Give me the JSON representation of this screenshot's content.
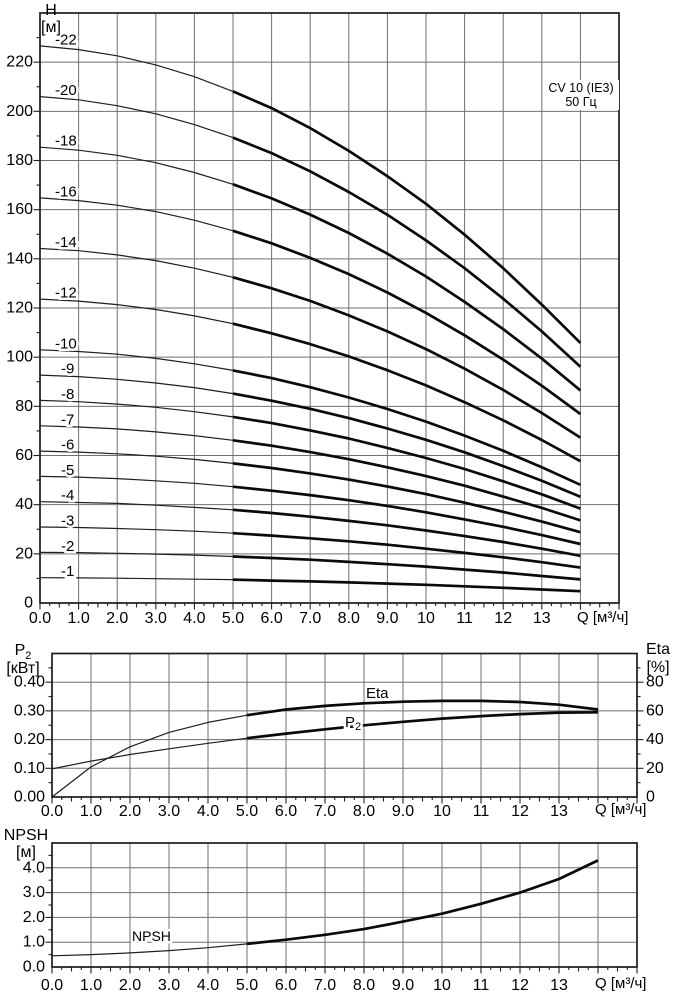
{
  "annotation": {
    "line1": "CV 10 (IE3)",
    "line2": "50 Гц"
  },
  "axes": {
    "head": {
      "title": "H",
      "unit": "[м]",
      "x_title": "Q [м³/ч]"
    },
    "power": {
      "title": "P",
      "title_sub": "2",
      "unit": "[кВт]",
      "x_title": "Q [м³/ч]"
    },
    "eta": {
      "title": "Eta",
      "unit": "[%]"
    },
    "npsh": {
      "title": "NPSH",
      "unit": "[м]",
      "x_title": "Q [м³/ч]"
    }
  },
  "colors": {
    "curve": "#0a0a0a",
    "curve_thin": "#1f1f1f",
    "grid": "#6f6f6f",
    "border": "#1a1a1a",
    "text": "#000000",
    "background": "#ffffff"
  },
  "chart_data": [
    {
      "type": "line",
      "name": "head-curves",
      "title": "CV 10 (IE3) 50 Гц",
      "xlabel": "Q [м³/ч]",
      "ylabel": "H [м]",
      "xlim": [
        0,
        15
      ],
      "ylim": [
        0,
        240
      ],
      "grid": true,
      "curves_end_q": 14,
      "bold_range_q": [
        5,
        14
      ],
      "x": [
        0,
        1,
        2,
        3,
        4,
        5,
        6,
        7,
        8,
        9,
        10,
        11,
        12,
        13,
        14
      ],
      "x_tick_labels": [
        "0.0",
        "1.0",
        "2.0",
        "3.0",
        "4.0",
        "5.0",
        "6.0",
        "7.0",
        "8.0",
        "9.0",
        "10",
        "11",
        "12",
        "13"
      ],
      "y_tick_labels": [
        "0",
        "20",
        "40",
        "60",
        "80",
        "100",
        "120",
        "140",
        "160",
        "180",
        "200",
        "220"
      ],
      "series": [
        {
          "name": "-22",
          "values": [
            226.6,
            225.1,
            222.6,
            218.9,
            214.1,
            208.1,
            201.3,
            193.2,
            183.9,
            173.6,
            162.4,
            149.8,
            136.2,
            121.4,
            105.8
          ]
        },
        {
          "name": "-20",
          "values": [
            206.0,
            204.7,
            202.3,
            199.0,
            194.6,
            189.3,
            183.0,
            175.6,
            167.2,
            157.9,
            147.5,
            136.2,
            123.8,
            110.5,
            96.1
          ]
        },
        {
          "name": "-18",
          "values": [
            185.4,
            184.2,
            182.1,
            179.1,
            175.1,
            170.3,
            164.6,
            158.0,
            150.5,
            142.1,
            132.8,
            122.5,
            111.4,
            99.4,
            86.5
          ]
        },
        {
          "name": "-16",
          "values": [
            164.8,
            163.7,
            161.8,
            159.2,
            155.7,
            151.4,
            146.3,
            140.4,
            133.8,
            126.3,
            118.0,
            108.9,
            99.0,
            88.4,
            76.9
          ]
        },
        {
          "name": "-14",
          "values": [
            144.2,
            143.3,
            141.6,
            139.3,
            136.2,
            132.5,
            128.0,
            122.9,
            117.0,
            110.5,
            103.3,
            95.3,
            86.7,
            77.3,
            67.3
          ]
        },
        {
          "name": "-12",
          "values": [
            123.6,
            122.8,
            121.4,
            119.4,
            116.8,
            113.6,
            109.7,
            105.3,
            100.3,
            94.7,
            88.5,
            81.7,
            74.3,
            66.3,
            57.7
          ]
        },
        {
          "name": "-10",
          "values": [
            103.0,
            102.3,
            101.2,
            99.5,
            97.3,
            94.6,
            91.5,
            87.8,
            83.6,
            78.9,
            73.8,
            68.1,
            61.9,
            55.2,
            48.1
          ]
        },
        {
          "name": "-9",
          "values": [
            92.7,
            92.1,
            91.0,
            89.5,
            87.6,
            85.2,
            82.3,
            79.0,
            75.2,
            71.0,
            66.4,
            61.3,
            55.7,
            49.7,
            43.2
          ]
        },
        {
          "name": "-8",
          "values": [
            82.4,
            81.9,
            80.9,
            79.6,
            77.8,
            75.7,
            73.2,
            70.2,
            66.9,
            63.1,
            59.0,
            54.5,
            49.5,
            44.2,
            38.4
          ]
        },
        {
          "name": "-7",
          "values": [
            72.1,
            71.6,
            70.8,
            69.6,
            68.1,
            66.2,
            64.0,
            61.4,
            58.5,
            55.2,
            51.6,
            47.7,
            43.3,
            38.7,
            33.6
          ]
        },
        {
          "name": "-6",
          "values": [
            61.8,
            61.4,
            60.7,
            59.7,
            58.4,
            56.8,
            54.9,
            52.7,
            50.2,
            47.4,
            44.3,
            40.8,
            37.1,
            33.1,
            28.8
          ]
        },
        {
          "name": "-5",
          "values": [
            51.5,
            51.2,
            50.6,
            49.7,
            48.7,
            47.3,
            45.7,
            43.9,
            41.8,
            39.5,
            36.9,
            34.0,
            31.0,
            27.6,
            24.0
          ]
        },
        {
          "name": "-4",
          "values": [
            41.2,
            40.9,
            40.5,
            39.8,
            38.9,
            37.9,
            36.6,
            35.1,
            33.4,
            31.6,
            29.5,
            27.2,
            24.8,
            22.1,
            19.2
          ]
        },
        {
          "name": "-3",
          "values": [
            30.9,
            30.7,
            30.3,
            29.8,
            29.2,
            28.4,
            27.4,
            26.3,
            25.1,
            23.7,
            22.1,
            20.4,
            18.6,
            16.6,
            14.4
          ]
        },
        {
          "name": "-2",
          "values": [
            20.6,
            20.5,
            20.2,
            19.9,
            19.5,
            18.9,
            18.3,
            17.6,
            16.7,
            15.8,
            14.8,
            13.6,
            12.4,
            11.0,
            9.6
          ]
        },
        {
          "name": "-1",
          "values": [
            10.3,
            10.2,
            10.1,
            9.9,
            9.7,
            9.5,
            9.1,
            8.8,
            8.4,
            7.9,
            7.4,
            6.8,
            6.2,
            5.5,
            4.8
          ]
        }
      ]
    },
    {
      "type": "line",
      "name": "power-and-efficiency",
      "xlabel": "Q [м³/ч]",
      "ylabel_left": "P₂ [кВт]",
      "ylabel_right": "Eta [%]",
      "xlim": [
        0,
        15
      ],
      "ylim_left": [
        0,
        0.5
      ],
      "ylim_right": [
        0,
        100
      ],
      "grid": true,
      "curves_end_q": 14,
      "bold_range_q": [
        5,
        14
      ],
      "x": [
        0,
        1,
        2,
        3,
        4,
        5,
        6,
        7,
        8,
        9,
        10,
        11,
        12,
        13,
        14
      ],
      "x_tick_labels": [
        "0.0",
        "1.0",
        "2.0",
        "3.0",
        "4.0",
        "5.0",
        "6.0",
        "7.0",
        "8.0",
        "9.0",
        "10",
        "11",
        "12",
        "13"
      ],
      "y_tick_labels_left": [
        "0.00",
        "0.10",
        "0.20",
        "0.30",
        "0.40"
      ],
      "y_tick_labels_right": [
        "0",
        "20",
        "40",
        "60",
        "80"
      ],
      "series": [
        {
          "name": "Eta",
          "axis": "right",
          "label": {
            "text": "Eta"
          },
          "values": [
            0,
            21,
            35,
            45,
            52,
            57,
            61,
            63.5,
            65.3,
            66.4,
            67,
            67,
            66.2,
            64.3,
            61
          ]
        },
        {
          "name": "P2",
          "axis": "left",
          "label": {
            "text": "P",
            "sub": "2"
          },
          "values": [
            0.098,
            0.125,
            0.148,
            0.168,
            0.187,
            0.205,
            0.221,
            0.236,
            0.25,
            0.262,
            0.273,
            0.282,
            0.289,
            0.294,
            0.295
          ]
        }
      ]
    },
    {
      "type": "line",
      "name": "npsh",
      "xlabel": "Q [м³/ч]",
      "ylabel": "NPSH [м]",
      "xlim": [
        0,
        15
      ],
      "ylim": [
        0,
        5
      ],
      "grid": true,
      "curves_end_q": 14,
      "bold_range_q": [
        5,
        14
      ],
      "x": [
        0,
        1,
        2,
        3,
        4,
        5,
        6,
        7,
        8,
        9,
        10,
        11,
        12,
        13,
        14
      ],
      "x_tick_labels": [
        "0.0",
        "1.0",
        "2.0",
        "3.0",
        "4.0",
        "5.0",
        "6.0",
        "7.0",
        "8.0",
        "9.0",
        "10",
        "11",
        "12",
        "13"
      ],
      "y_tick_labels": [
        "0.0",
        "1.0",
        "2.0",
        "3.0",
        "4.0"
      ],
      "series": [
        {
          "name": "NPSH",
          "label": {
            "text": "NPSH"
          },
          "values": [
            0.45,
            0.5,
            0.57,
            0.66,
            0.78,
            0.93,
            1.1,
            1.3,
            1.53,
            1.83,
            2.15,
            2.55,
            3.0,
            3.55,
            4.3
          ]
        }
      ]
    }
  ]
}
